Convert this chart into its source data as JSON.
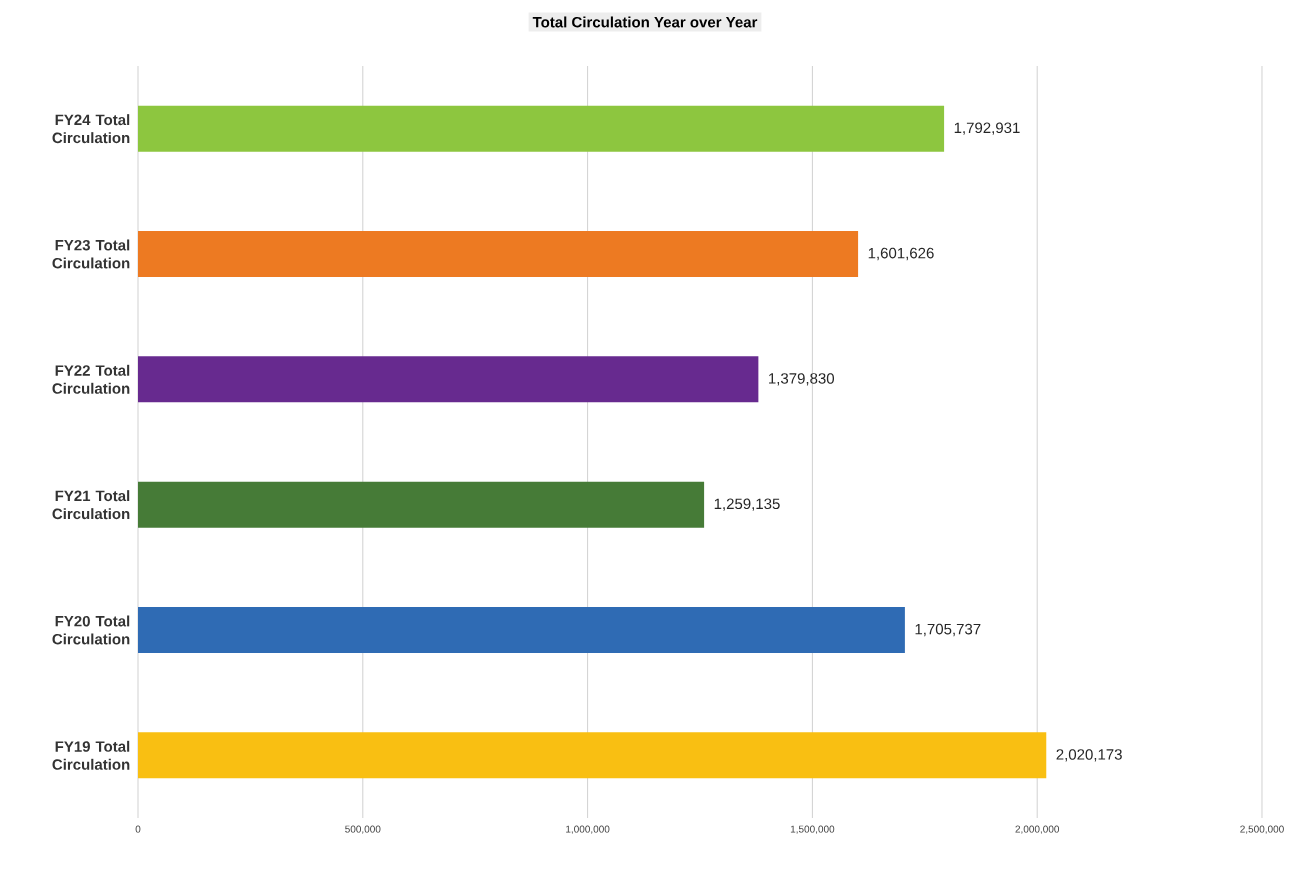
{
  "chart_data": {
    "type": "bar",
    "orientation": "horizontal",
    "title": "Total Circulation Year over Year",
    "categories": [
      "FY24 Total Circulation",
      "FY23 Total Circulation",
      "FY22 Total Circulation",
      "FY21 Total Circulation",
      "FY20 Total Circulation",
      "FY19 Total Circulation"
    ],
    "values": [
      1792931,
      1601626,
      1379830,
      1259135,
      1705737,
      2020173
    ],
    "colors": [
      "#8dc63f",
      "#ed7a22",
      "#672a8f",
      "#467b37",
      "#2f6bb4",
      "#f9bf12"
    ],
    "xlim": [
      0,
      2500000
    ],
    "xticks": [
      {
        "value": 0,
        "label": "0"
      },
      {
        "value": 500000,
        "label": "500,000"
      },
      {
        "value": 1000000,
        "label": "1,000,000"
      },
      {
        "value": 1500000,
        "label": "1,500,000"
      },
      {
        "value": 2000000,
        "label": "2,000,000"
      },
      {
        "value": 2500000,
        "label": "2,500,000"
      }
    ],
    "value_labels": [
      "1,792,931",
      "1,601,626",
      "1,379,830",
      "1,259,135",
      "1,705,737",
      "2,020,173"
    ],
    "grid": "x"
  }
}
